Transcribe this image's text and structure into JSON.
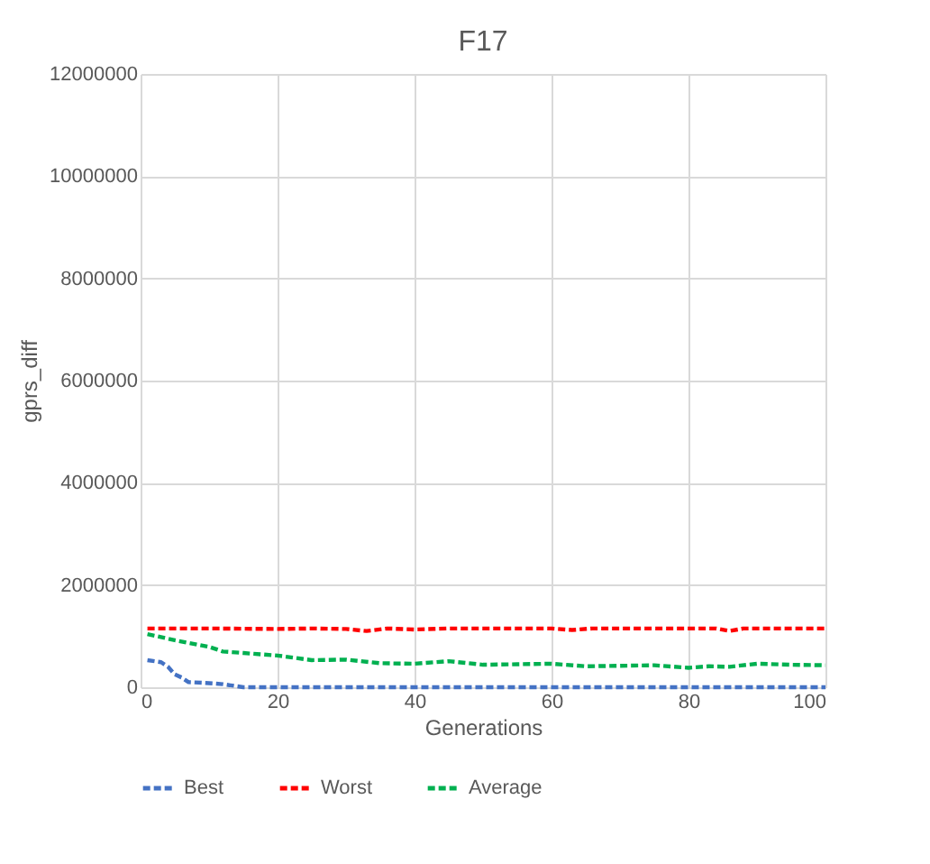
{
  "chart_data": {
    "type": "line",
    "title": "F17",
    "xlabel": "Generations",
    "ylabel": "gprs_diff",
    "xlim": [
      0,
      100
    ],
    "xticks": [
      0,
      20,
      40,
      60,
      80,
      100
    ],
    "ylim": [
      0,
      12000000
    ],
    "yticks": [
      0,
      2000000,
      4000000,
      6000000,
      8000000,
      10000000,
      12000000
    ],
    "grid": true,
    "legend": "bottom",
    "line_style": "dashed",
    "marker": "none",
    "series": [
      {
        "name": "Best",
        "color": "#4472c4",
        "x": [
          1,
          3,
          4,
          5,
          6,
          7,
          10,
          12,
          15,
          20,
          30,
          40,
          50,
          60,
          70,
          80,
          90,
          100
        ],
        "values": [
          530000,
          490000,
          400000,
          250000,
          190000,
          100000,
          80000,
          60000,
          0,
          0,
          0,
          0,
          0,
          0,
          0,
          0,
          0,
          0
        ]
      },
      {
        "name": "Worst",
        "color": "#ff0000",
        "x": [
          1,
          10,
          20,
          25,
          30,
          33,
          36,
          40,
          45,
          50,
          60,
          63,
          66,
          70,
          80,
          84,
          86,
          88,
          90,
          100
        ],
        "values": [
          1150000,
          1150000,
          1140000,
          1150000,
          1140000,
          1100000,
          1150000,
          1130000,
          1150000,
          1150000,
          1150000,
          1120000,
          1150000,
          1150000,
          1150000,
          1150000,
          1100000,
          1150000,
          1150000,
          1150000
        ]
      },
      {
        "name": "Average",
        "color": "#00b050",
        "x": [
          1,
          5,
          10,
          12,
          15,
          20,
          25,
          30,
          35,
          40,
          45,
          50,
          55,
          60,
          65,
          70,
          75,
          80,
          83,
          86,
          90,
          95,
          100
        ],
        "values": [
          1040000,
          920000,
          790000,
          700000,
          670000,
          620000,
          530000,
          540000,
          470000,
          460000,
          510000,
          440000,
          450000,
          460000,
          410000,
          420000,
          430000,
          380000,
          410000,
          400000,
          460000,
          440000,
          430000
        ]
      }
    ]
  }
}
